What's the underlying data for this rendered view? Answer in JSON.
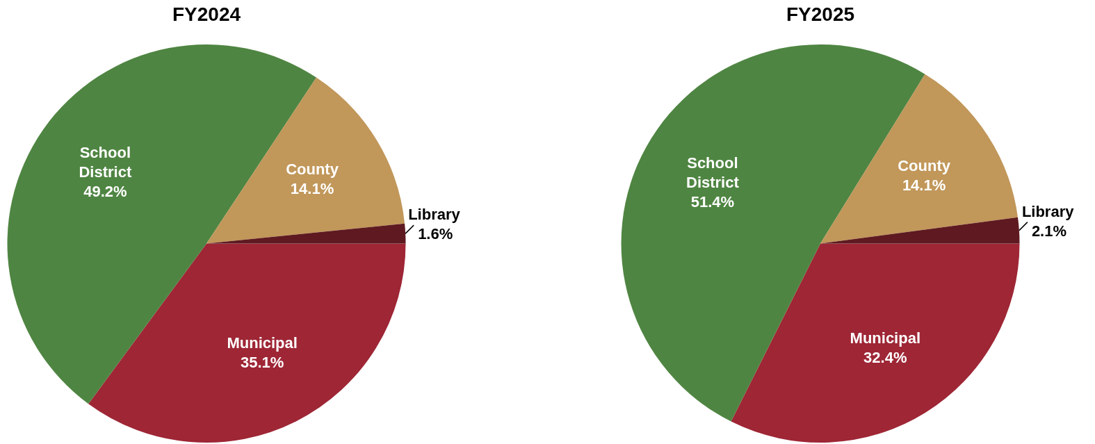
{
  "chart_data": [
    {
      "type": "pie",
      "title": "FY2024",
      "categories": [
        "Municipal",
        "School District",
        "County",
        "Library"
      ],
      "values": [
        35.1,
        49.2,
        14.1,
        1.6
      ],
      "colors": [
        "#9e2635",
        "#4f8542",
        "#c1975a",
        "#5e1a20"
      ],
      "value_labels": [
        "35.1%",
        "49.2%",
        "14.1%",
        "1.6%"
      ]
    },
    {
      "type": "pie",
      "title": "FY2025",
      "categories": [
        "Municipal",
        "School District",
        "County",
        "Library"
      ],
      "values": [
        32.4,
        51.4,
        14.1,
        2.1
      ],
      "colors": [
        "#9e2635",
        "#4f8542",
        "#c1975a",
        "#5e1a20"
      ],
      "value_labels": [
        "32.4%",
        "51.4%",
        "14.1%",
        "2.1%"
      ]
    }
  ]
}
